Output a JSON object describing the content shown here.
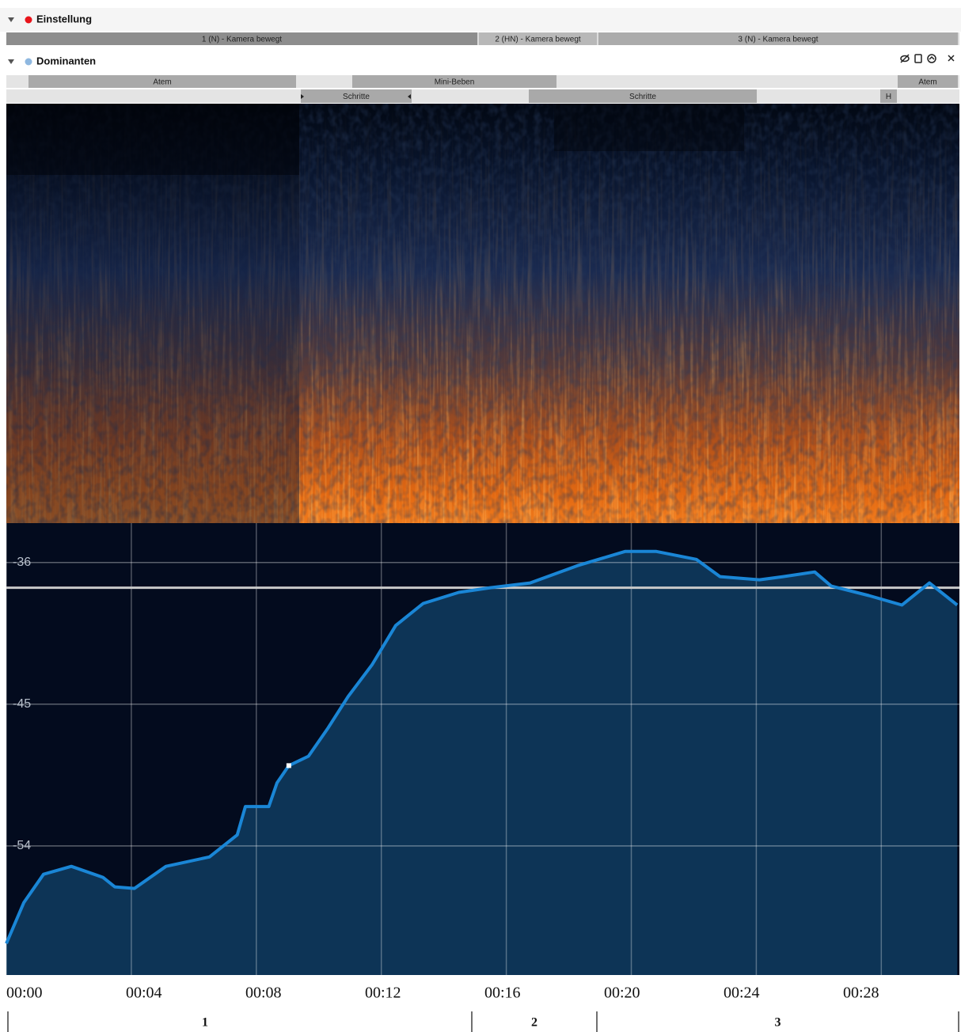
{
  "sections": [
    {
      "title": "Einstellung",
      "tracks": [
        [
          "1 (N) - Kamera bewegt",
          "2 (HN) - Kamera bewegt",
          "3 (N) - Kamera bewegt"
        ]
      ]
    },
    {
      "title": "Dominanten",
      "tracks": [
        [
          "Atem",
          "Mini-Beben",
          "Atem"
        ],
        [
          "Schritte",
          "Schritte",
          "H"
        ]
      ]
    }
  ],
  "chart_data": {
    "type": "area",
    "x": [
      0,
      0.56,
      1.19,
      2.08,
      3.09,
      3.47,
      4.1,
      5.11,
      6.5,
      7.39,
      7.65,
      8.4,
      8.66,
      9.04,
      9.67,
      10.3,
      10.94,
      11.7,
      12.46,
      13.34,
      14.48,
      15.49,
      16.76,
      18.28,
      19.8,
      20.8,
      22.08,
      22.84,
      24.1,
      24.86,
      25.87,
      26.4,
      27.6,
      28.66,
      29.54,
      30.43
    ],
    "values": [
      -60.2,
      -57.6,
      -55.8,
      -55.3,
      -56.0,
      -56.6,
      -56.7,
      -55.3,
      -54.7,
      -53.3,
      -51.5,
      -51.5,
      -50.0,
      -48.9,
      -48.3,
      -46.5,
      -44.5,
      -42.5,
      -40.0,
      -38.6,
      -37.9,
      -37.6,
      -37.3,
      -36.2,
      -35.3,
      -35.3,
      -35.8,
      -36.9,
      -37.1,
      -36.9,
      -36.6,
      -37.5,
      -38.1,
      -38.7,
      -37.3,
      -38.7
    ],
    "color": "#1a86d6",
    "xlim": [
      0,
      30.5
    ],
    "ylim": [
      -62.2,
      -33.5
    ],
    "xticks": [
      {
        "value": 0,
        "label": "00:00"
      },
      {
        "value": 4,
        "label": "00:04"
      },
      {
        "value": 8,
        "label": "00:08"
      },
      {
        "value": 12,
        "label": "00:12"
      },
      {
        "value": 16,
        "label": "00:16"
      },
      {
        "value": 20,
        "label": "00:20"
      },
      {
        "value": 24,
        "label": "00:24"
      },
      {
        "value": 28,
        "label": "00:28"
      }
    ],
    "yticks": [
      -36,
      -45,
      -54
    ],
    "grid": true,
    "reference_line": -37.6,
    "highlight_index": 13
  },
  "footer_sections": [
    "1",
    "2",
    "3"
  ]
}
